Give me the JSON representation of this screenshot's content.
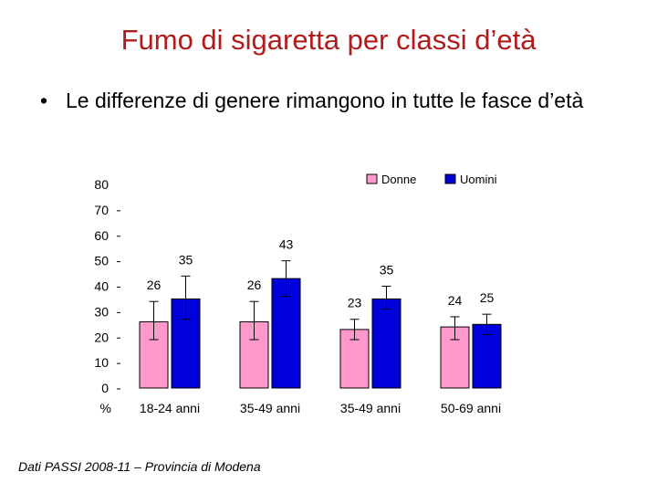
{
  "slide": {
    "title": "Fumo di sigaretta per classi d’età",
    "bullets": [
      "Le differenze di genere rimangono in tutte le fasce d’età"
    ],
    "source": "Dati PASSI 2008-11 – Provincia di Modena"
  },
  "chart_data": {
    "type": "bar",
    "title": "",
    "xlabel": "",
    "ylabel": "%",
    "ylim": [
      0,
      80
    ],
    "yticks": [
      0,
      10,
      20,
      30,
      40,
      50,
      60,
      70,
      80
    ],
    "grid": false,
    "legend_position": "top-right",
    "categories": [
      "18-24 anni",
      "35-49 anni",
      "35-49 anni",
      "50-69 anni"
    ],
    "series": [
      {
        "name": "Donne",
        "color": "#ff99cc",
        "values": [
          26,
          26,
          23,
          24
        ],
        "ci_low": [
          19,
          19,
          19,
          19
        ],
        "ci_high": [
          34,
          34,
          27,
          28
        ]
      },
      {
        "name": "Uomini",
        "color": "#0000dd",
        "values": [
          35,
          43,
          35,
          25
        ],
        "ci_low": [
          27,
          36,
          31,
          21
        ],
        "ci_high": [
          44,
          50,
          40,
          29
        ]
      }
    ]
  }
}
